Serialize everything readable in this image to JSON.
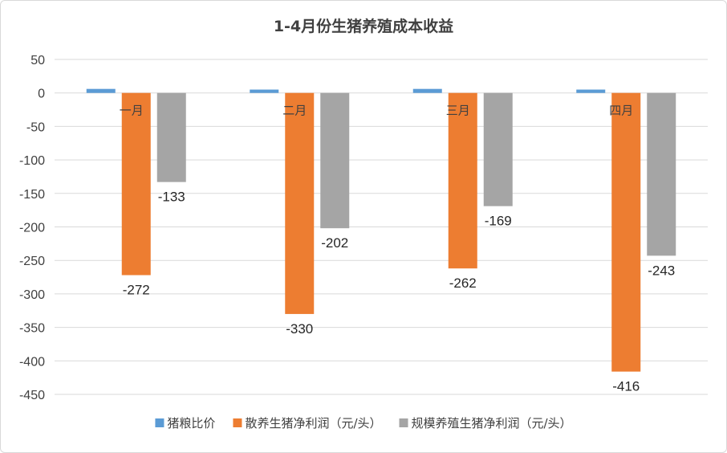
{
  "chart_data": {
    "type": "bar",
    "title": "1-4月份生猪养殖成本收益",
    "categories": [
      "一月",
      "二月",
      "三月",
      "四月"
    ],
    "series": [
      {
        "name": "猪粮比价",
        "color": "#5b9bd5",
        "values": [
          6,
          5,
          6,
          5
        ],
        "labels": [
          "",
          "",
          "",
          ""
        ]
      },
      {
        "name": "散养生猪净利润（元/头）",
        "color": "#ed7d31",
        "values": [
          -272,
          -330,
          -262,
          -416
        ],
        "labels": [
          "-272",
          "-330",
          "-262",
          "-416"
        ]
      },
      {
        "name": "规模养殖生猪净利润（元/头）",
        "color": "#a5a5a5",
        "values": [
          -133,
          -202,
          -169,
          -243
        ],
        "labels": [
          "-133",
          "-202",
          "-169",
          "-243"
        ]
      }
    ],
    "yticks": [
      "50",
      "0",
      "-50",
      "-100",
      "-150",
      "-200",
      "-250",
      "-300",
      "-350",
      "-400",
      "-450"
    ],
    "ylim": [
      -450,
      50
    ],
    "grid": true,
    "legend": "bottom"
  }
}
